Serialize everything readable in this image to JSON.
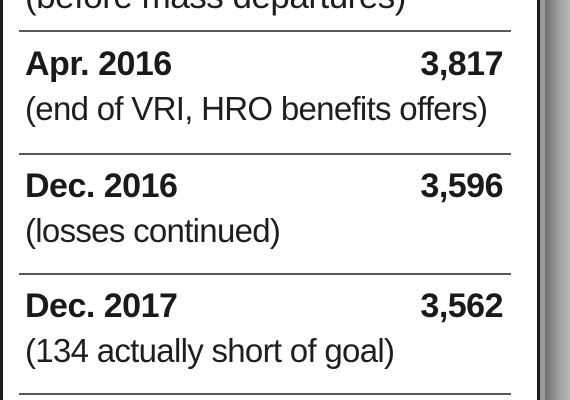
{
  "top_caption": "(before mass departures)",
  "entries": [
    {
      "date": "Apr. 2016",
      "value": "3,817",
      "note": "(end of VRI, HRO benefits offers)"
    },
    {
      "date": "Dec. 2016",
      "value": "3,596",
      "note": "(losses continued)"
    },
    {
      "date": "Dec. 2017",
      "value": "3,562",
      "note": "(134 actually short of goal)"
    }
  ],
  "colors": {
    "text": "#1e1e1e",
    "background": "#ffffff",
    "border": "#1c1c1c",
    "divider": "#5a5a5a"
  }
}
